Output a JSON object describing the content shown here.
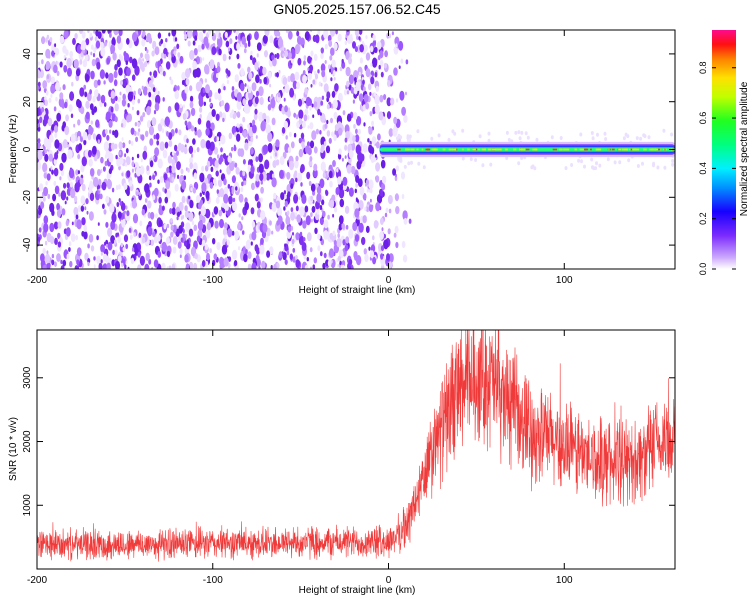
{
  "title": "GN05.2025.157.06.52.C45",
  "colors": {
    "snr_line": "#f03a3a",
    "scatter_purple": "#6a1ee6",
    "cmap": [
      "#ffffff",
      "#b57bff",
      "#6a1ee6",
      "#2b00ff",
      "#00a8ff",
      "#00ffd0",
      "#22ff22",
      "#c8ff00",
      "#ffe000",
      "#ff8a00",
      "#ff2020",
      "#ff10a0"
    ]
  },
  "chart_data": [
    {
      "type": "heatmap",
      "xlabel": "Height of straight line (km)",
      "ylabel": "Frequency (Hz)",
      "xlim": [
        -200,
        163
      ],
      "ylim": [
        -50,
        50
      ],
      "xticks": [
        -200,
        -100,
        0,
        100
      ],
      "yticks": [
        -40,
        -20,
        0,
        20,
        40
      ],
      "xtick_labels": [
        "-200",
        "-100",
        "0",
        "100"
      ],
      "ytick_labels": [
        "-40",
        "-20",
        "0",
        "20",
        "40"
      ],
      "noise_region_x": [
        -200,
        5
      ],
      "signal_band": {
        "x_start": -5,
        "x_end": 163,
        "frequency_center": 0,
        "frequency_halfwidth": 3
      },
      "colorbar": {
        "label": "Normalized spectral amplitude",
        "range": [
          0,
          0.95
        ],
        "ticks": [
          0.0,
          0.2,
          0.4,
          0.6,
          0.8
        ],
        "tick_labels": [
          "0.0",
          "0.2",
          "0.4",
          "0.6",
          "0.8"
        ]
      },
      "grid": false
    },
    {
      "type": "line",
      "xlabel": "Height of straight line (km)",
      "ylabel": "SNR (10 * v/v)",
      "xlim": [
        -200,
        163
      ],
      "ylim": [
        0,
        3750
      ],
      "xticks": [
        -200,
        -100,
        0,
        100
      ],
      "yticks": [
        1000,
        2000,
        3000
      ],
      "xtick_labels": [
        "-200",
        "-100",
        "0",
        "100"
      ],
      "ytick_labels": [
        "1000",
        "2000",
        "3000"
      ],
      "envelope": {
        "x": [
          -200,
          -150,
          -100,
          -50,
          0,
          10,
          20,
          30,
          40,
          50,
          55,
          60,
          70,
          80,
          90,
          100,
          110,
          120,
          130,
          140,
          150,
          163
        ],
        "y": [
          380,
          380,
          400,
          420,
          420,
          650,
          1400,
          2200,
          2800,
          3000,
          3000,
          2900,
          2500,
          2200,
          2050,
          1900,
          1800,
          1700,
          1650,
          1700,
          1850,
          2100
        ]
      },
      "grid": false
    }
  ]
}
